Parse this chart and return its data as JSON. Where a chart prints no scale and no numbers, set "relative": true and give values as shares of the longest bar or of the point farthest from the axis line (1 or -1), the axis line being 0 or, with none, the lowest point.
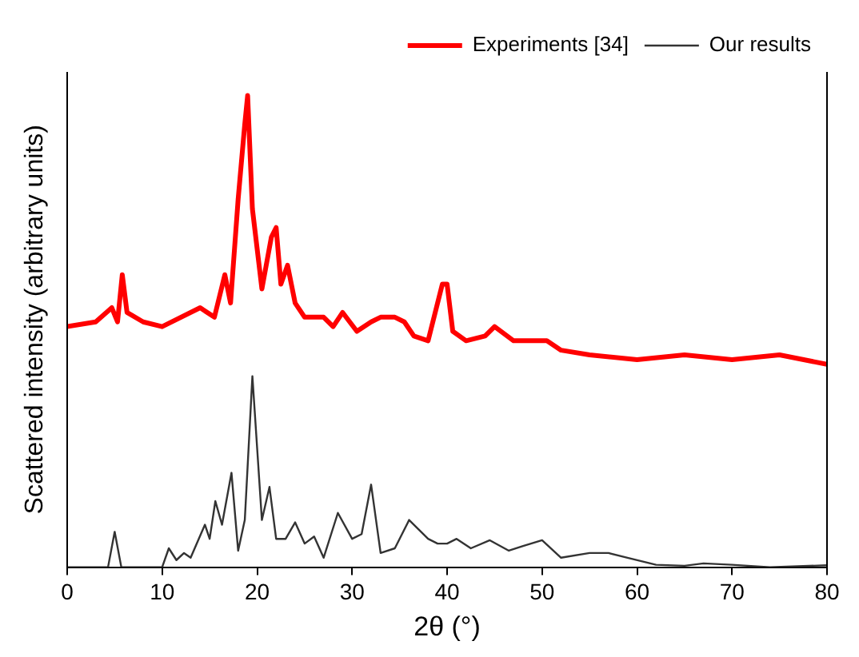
{
  "chart_data": {
    "type": "line",
    "relative": true,
    "xlabel": "2θ (°)",
    "ylabel": "Scattered intensity (arbitrary units)",
    "xlim": [
      0,
      80
    ],
    "xticks": [
      0,
      10,
      20,
      30,
      40,
      50,
      60,
      70,
      80
    ],
    "grid": false,
    "legend": "top right",
    "marker": "none",
    "line_style": "solid",
    "series": [
      {
        "name": "Experiments [34]",
        "color": "#ff0000",
        "x": [
          0,
          3,
          4.7,
          5.3,
          5.8,
          6.3,
          8,
          10,
          14,
          15.5,
          16.6,
          17.2,
          18,
          18.7,
          19,
          19.5,
          20.5,
          21.5,
          22,
          22.5,
          23.2,
          24,
          25,
          27,
          28,
          29,
          30.5,
          32,
          33,
          34.5,
          35.5,
          36.5,
          38,
          39.5,
          40,
          40.6,
          42,
          44,
          45,
          47,
          50.5,
          52,
          55,
          60,
          65,
          70,
          75,
          80
        ],
        "values": [
          0.51,
          0.52,
          0.55,
          0.52,
          0.62,
          0.54,
          0.52,
          0.51,
          0.55,
          0.53,
          0.62,
          0.56,
          0.78,
          0.94,
          1,
          0.76,
          0.59,
          0.7,
          0.72,
          0.6,
          0.64,
          0.56,
          0.53,
          0.53,
          0.51,
          0.54,
          0.5,
          0.52,
          0.53,
          0.53,
          0.52,
          0.49,
          0.48,
          0.6,
          0.6,
          0.5,
          0.48,
          0.49,
          0.51,
          0.48,
          0.48,
          0.46,
          0.45,
          0.44,
          0.45,
          0.44,
          0.45,
          0.43
        ]
      },
      {
        "name": "Our results",
        "color": "#333333",
        "x": [
          0,
          4.3,
          5,
          5.7,
          10,
          10.7,
          11.5,
          12.3,
          13,
          14.5,
          15,
          15.6,
          16.3,
          17.3,
          18,
          18.7,
          19.5,
          20.5,
          21.3,
          22,
          23,
          24,
          25,
          26,
          27,
          28.5,
          30,
          31,
          32,
          33,
          34.5,
          36,
          38,
          39,
          40,
          41,
          42.5,
          44.5,
          46.5,
          48,
          50,
          52,
          55,
          57,
          59,
          62,
          65,
          67,
          70,
          74,
          80
        ],
        "values": [
          0,
          0,
          0.075,
          0,
          0,
          0.04,
          0.015,
          0.03,
          0.02,
          0.09,
          0.06,
          0.14,
          0.09,
          0.2,
          0.035,
          0.1,
          0.405,
          0.1,
          0.17,
          0.06,
          0.06,
          0.095,
          0.05,
          0.065,
          0.02,
          0.115,
          0.06,
          0.07,
          0.175,
          0.03,
          0.04,
          0.1,
          0.06,
          0.05,
          0.05,
          0.06,
          0.04,
          0.057,
          0.035,
          0.045,
          0.057,
          0.02,
          0.03,
          0.03,
          0.02,
          0.005,
          0.003,
          0.008,
          0.005,
          0,
          0.004
        ]
      }
    ]
  }
}
